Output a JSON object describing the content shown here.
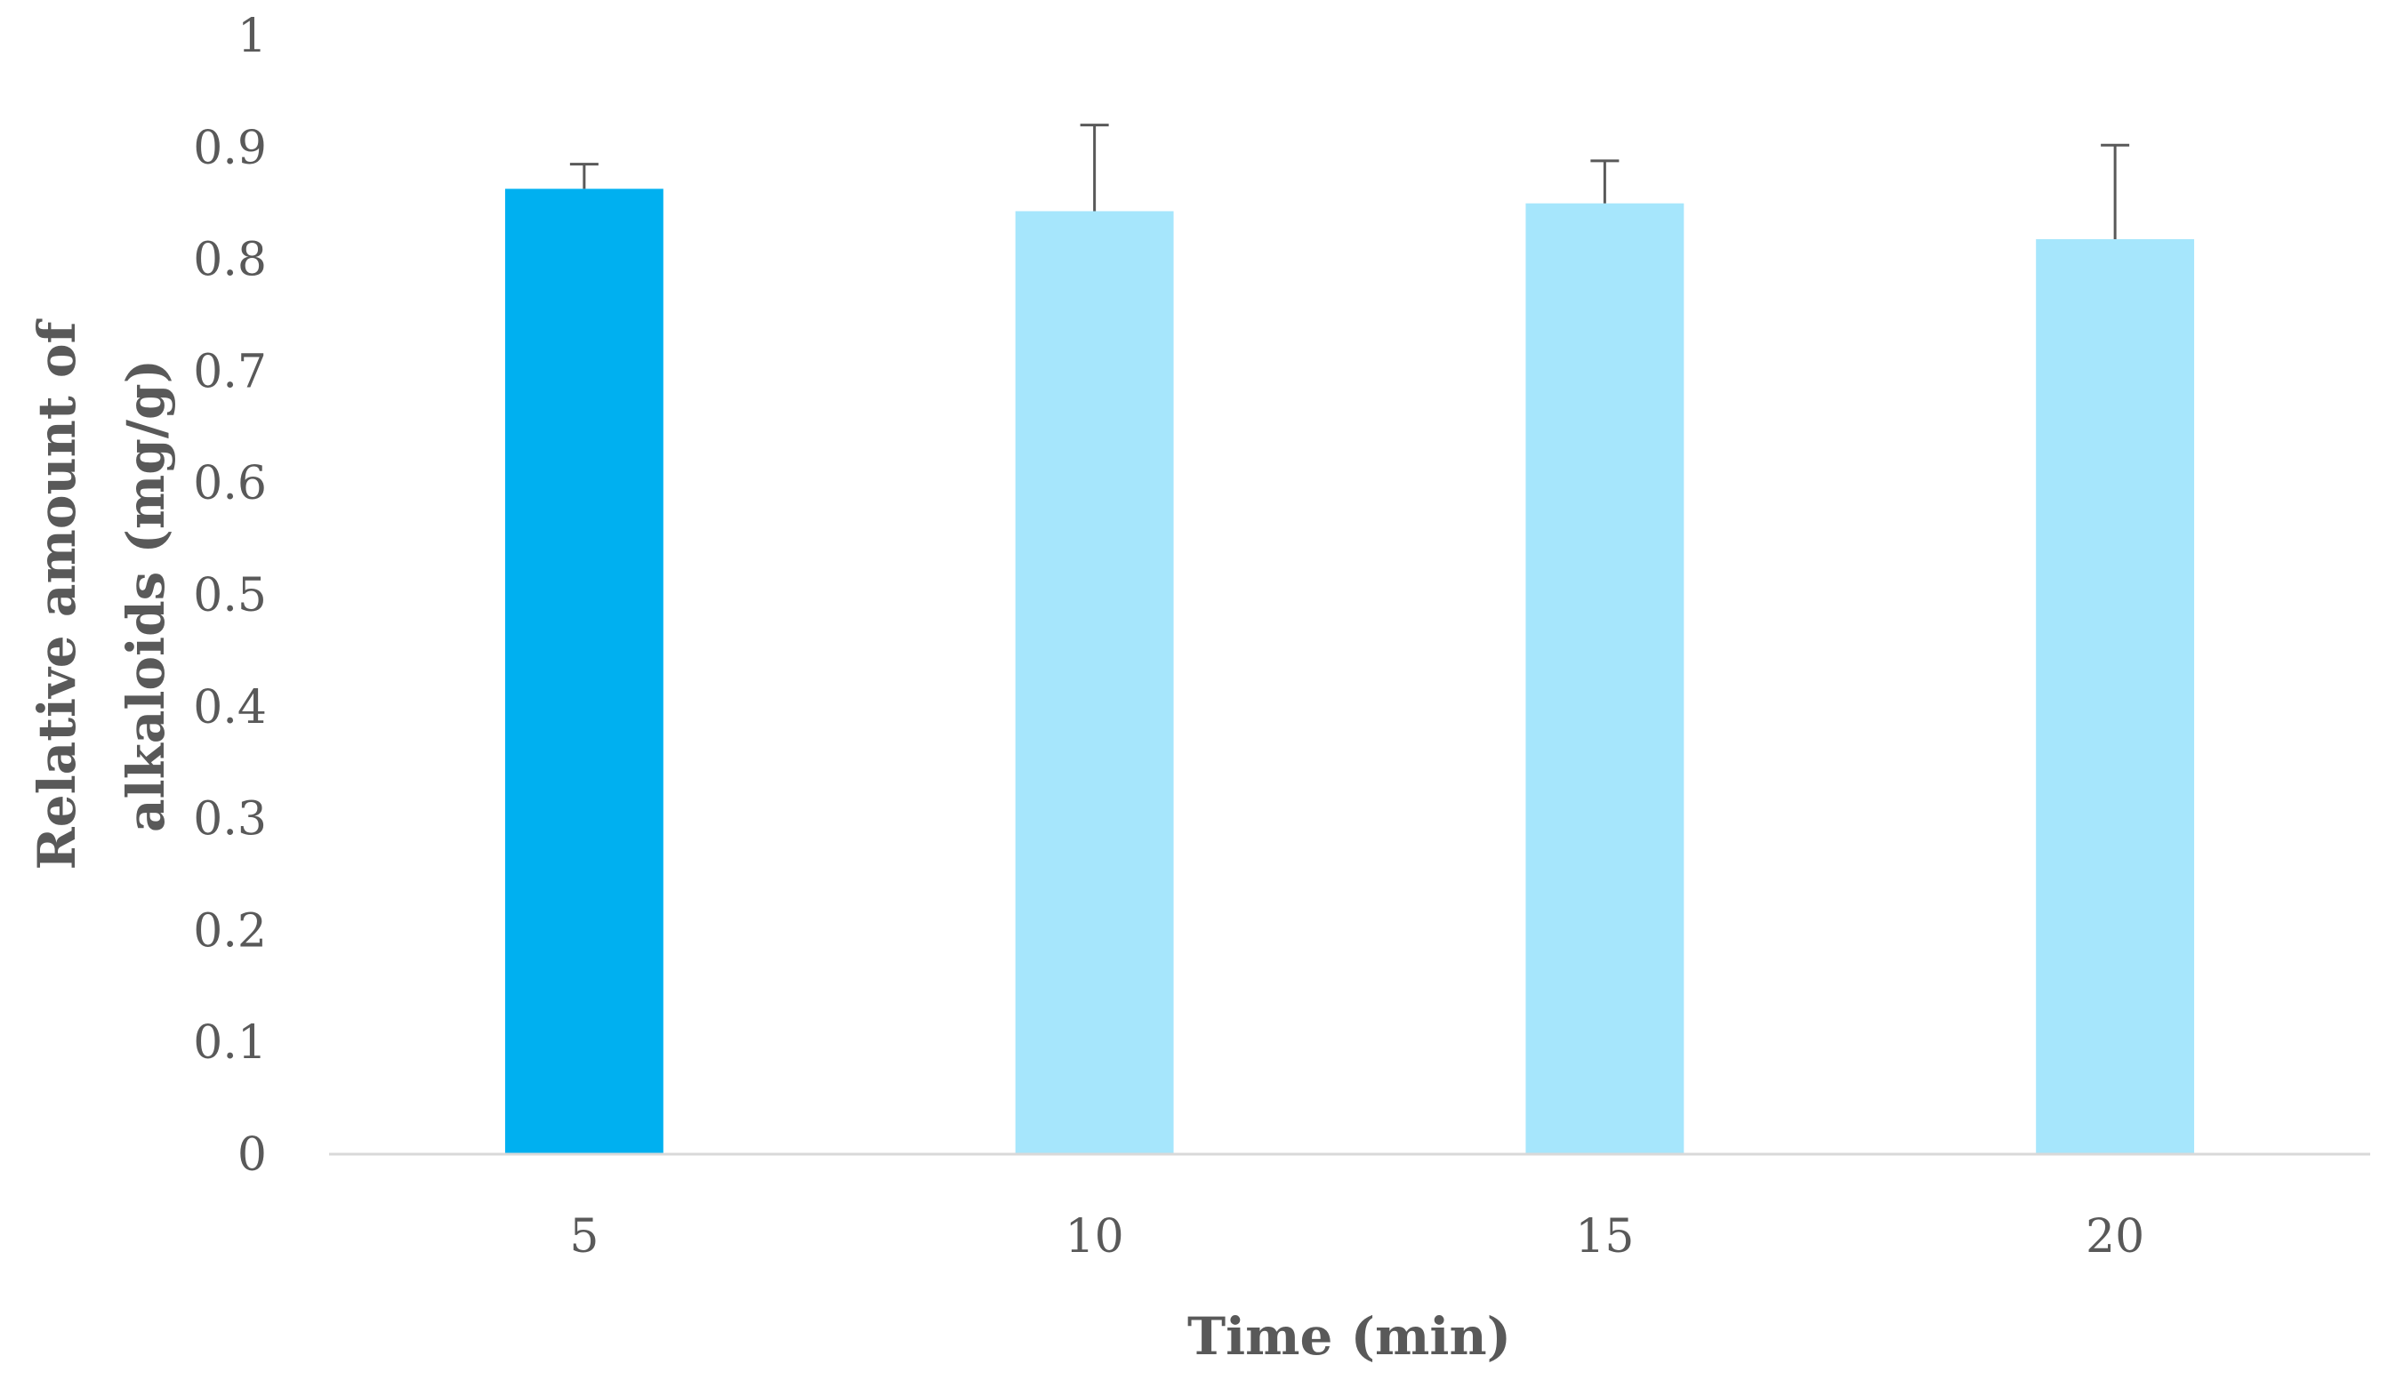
{
  "chart_data": {
    "type": "bar",
    "title": "",
    "xlabel": "Time (min)",
    "ylabel_lines": [
      "Relative amount of",
      "alkaloids (mg/g)"
    ],
    "categories": [
      "5",
      "10",
      "15",
      "20"
    ],
    "values": [
      0.863,
      0.843,
      0.85,
      0.818
    ],
    "error_upper": [
      0.885,
      0.92,
      0.888,
      0.902
    ],
    "bar_colors": [
      "#00b0f0",
      "#a6e6fc",
      "#a6e6fc",
      "#a6e6fc"
    ],
    "error_bar_color": "#595959",
    "axis_color": "#d9d9d9",
    "ylim": [
      0,
      1
    ],
    "yticks": [
      "0",
      "0.1",
      "0.2",
      "0.3",
      "0.4",
      "0.5",
      "0.6",
      "0.7",
      "0.8",
      "0.9",
      "1"
    ],
    "grid": false,
    "legend": "none"
  }
}
